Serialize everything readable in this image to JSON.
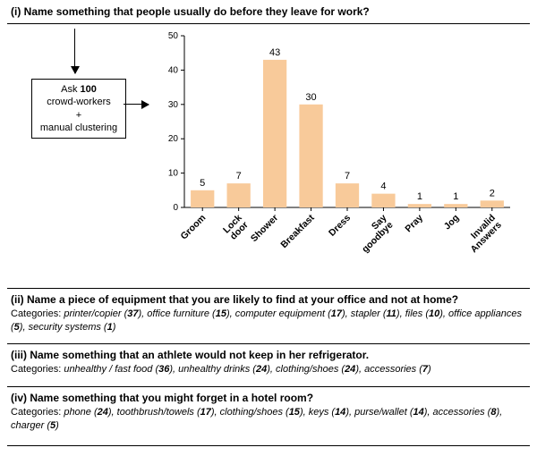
{
  "question1": {
    "prefix": "(i)",
    "text": "Name something that people usually do before they leave for work?",
    "method_box": {
      "line1_pre": "Ask ",
      "line1_bold": "100",
      "line2": "crowd-workers",
      "line3": "+",
      "line4": "manual clustering"
    },
    "chart": {
      "type": "bar",
      "bar_color": "#f8ca9a",
      "axis_color": "#000000",
      "background_color": "#ffffff",
      "ylim": [
        0,
        50
      ],
      "ytick_step": 10,
      "bar_width_ratio": 0.65,
      "label_fontsize": 10,
      "value_fontsize": 11,
      "categories": [
        "Groom",
        "Lock door",
        "Shower",
        "Breakfast",
        "Dress",
        "Say goodbye",
        "Pray",
        "Jog",
        "Invalid Answers"
      ],
      "values": [
        5,
        7,
        43,
        30,
        7,
        4,
        1,
        1,
        2
      ]
    }
  },
  "question2": {
    "prefix": "(ii)",
    "text": "Name a piece of equipment that you are likely to find at your office and not at home?",
    "categories_label": "Categories:",
    "items": [
      {
        "name": "printer/copier",
        "count": 37
      },
      {
        "name": "office furniture",
        "count": 15
      },
      {
        "name": "computer equipment",
        "count": 17
      },
      {
        "name": "stapler",
        "count": 11
      },
      {
        "name": "files",
        "count": 10
      },
      {
        "name": "office appliances",
        "count": 5
      },
      {
        "name": "security systems",
        "count": 1
      }
    ]
  },
  "question3": {
    "prefix": "(iii)",
    "text": "Name something that an athlete would not keep in her refrigerator.",
    "categories_label": "Categories:",
    "items": [
      {
        "name": "unhealthy / fast food",
        "count": 36
      },
      {
        "name": "unhealthy drinks",
        "count": 24
      },
      {
        "name": "clothing/shoes",
        "count": 24
      },
      {
        "name": "accessories",
        "count": 7
      }
    ]
  },
  "question4": {
    "prefix": "(iv)",
    "text": "Name something that you might forget in a hotel room?",
    "categories_label": "Categories:",
    "items": [
      {
        "name": "phone",
        "count": 24
      },
      {
        "name": "toothbrush/towels",
        "count": 17
      },
      {
        "name": "clothing/shoes",
        "count": 15
      },
      {
        "name": "keys",
        "count": 14
      },
      {
        "name": "purse/wallet",
        "count": 14
      },
      {
        "name": "accessories",
        "count": 8
      },
      {
        "name": "charger",
        "count": 5
      }
    ]
  }
}
